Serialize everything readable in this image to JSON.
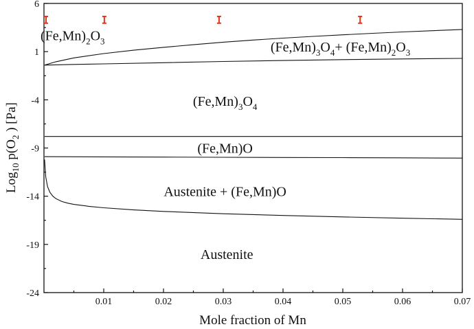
{
  "chart_data": {
    "type": "line",
    "title": "",
    "xlabel": "Mole fraction of Mn",
    "ylabel": {
      "base": "Log",
      "base_sub": "10",
      "mid": " p(O",
      "mid_sub": "2",
      "end": " ) [Pa]"
    },
    "xlim": [
      0,
      0.07
    ],
    "ylim": [
      -24,
      6
    ],
    "x_ticks": [
      0.01,
      0.02,
      0.03,
      0.04,
      0.05,
      0.06,
      0.07
    ],
    "x_tick_labels": [
      "0.01",
      "0.02",
      "0.03",
      "0.04",
      "0.05",
      "0.06",
      "0.07"
    ],
    "y_ticks": [
      6,
      1,
      -4,
      -9,
      -14,
      -19,
      -24
    ],
    "y_tick_labels": [
      "6",
      "1",
      "-4",
      "-9",
      "-14",
      "-19",
      "-24"
    ],
    "grid": false,
    "boundaries": [
      {
        "id": "b-m2o3-upper",
        "x": [
          0.0001,
          0.002,
          0.005,
          0.01,
          0.015,
          0.02,
          0.025,
          0.03,
          0.035,
          0.04,
          0.045,
          0.05,
          0.055,
          0.06,
          0.065,
          0.07
        ],
        "y": [
          -0.4,
          -0.05,
          0.35,
          0.8,
          1.15,
          1.45,
          1.72,
          1.98,
          2.2,
          2.4,
          2.58,
          2.74,
          2.9,
          3.04,
          3.17,
          3.3
        ]
      },
      {
        "id": "b-m3o4-upper",
        "x": [
          0.0001,
          0.005,
          0.01,
          0.02,
          0.03,
          0.04,
          0.05,
          0.06,
          0.07
        ],
        "y": [
          -0.4,
          -0.33,
          -0.27,
          -0.15,
          -0.02,
          0.08,
          0.17,
          0.24,
          0.3
        ]
      },
      {
        "id": "b-m3o4-mo",
        "x": [
          0.0001,
          0.07
        ],
        "y": [
          -7.8,
          -7.8
        ]
      },
      {
        "id": "b-mo-austenite",
        "x": [
          0.0001,
          0.01,
          0.02,
          0.03,
          0.04,
          0.05,
          0.06,
          0.07
        ],
        "y": [
          -9.9,
          -9.92,
          -9.94,
          -9.96,
          -9.98,
          -10.0,
          -10.02,
          -10.05
        ]
      },
      {
        "id": "b-austenite-lower",
        "x": [
          0.0001,
          0.0003,
          0.0006,
          0.001,
          0.0015,
          0.002,
          0.003,
          0.004,
          0.005,
          0.0075,
          0.01,
          0.015,
          0.02,
          0.03,
          0.04,
          0.05,
          0.06,
          0.07
        ],
        "y": [
          -10.2,
          -12.0,
          -13.0,
          -13.6,
          -14.0,
          -14.25,
          -14.55,
          -14.72,
          -14.85,
          -15.05,
          -15.2,
          -15.42,
          -15.58,
          -15.82,
          -16.0,
          -16.15,
          -16.28,
          -16.4
        ]
      }
    ],
    "error_bars": [
      {
        "x": 0.0,
        "y": 4.3,
        "yerr": 0.35
      },
      {
        "x": 0.0101,
        "y": 4.3,
        "yerr": 0.35
      },
      {
        "x": 0.0293,
        "y": 4.3,
        "yerr": 0.35
      },
      {
        "x": 0.0529,
        "y": 4.3,
        "yerr": 0.35
      }
    ],
    "regions": [
      {
        "id": "region-m2o3",
        "parts": [
          [
            "(Fe,Mn)",
            ""
          ],
          [
            "2",
            "sub"
          ],
          [
            "O",
            ""
          ],
          [
            "3",
            "sub"
          ]
        ],
        "x": 0.0048,
        "y": 2.2,
        "anchor": "middle"
      },
      {
        "id": "region-m3o4-m2o3",
        "parts": [
          [
            "(Fe,Mn)",
            ""
          ],
          [
            "3",
            "sub"
          ],
          [
            "O",
            ""
          ],
          [
            "4",
            "sub"
          ],
          [
            "+ (Fe,Mn)",
            ""
          ],
          [
            "2",
            "sub"
          ],
          [
            "O",
            ""
          ],
          [
            "3",
            "sub"
          ]
        ],
        "x": 0.0496,
        "y": 1.0,
        "anchor": "middle"
      },
      {
        "id": "region-m3o4",
        "parts": [
          [
            "(Fe,Mn)",
            ""
          ],
          [
            "3",
            "sub"
          ],
          [
            "O",
            ""
          ],
          [
            "4",
            "sub"
          ]
        ],
        "x": 0.0303,
        "y": -4.6,
        "anchor": "middle"
      },
      {
        "id": "region-mo",
        "parts": [
          [
            "(Fe,Mn)O",
            ""
          ]
        ],
        "x": 0.0303,
        "y": -9.5,
        "anchor": "middle"
      },
      {
        "id": "region-austenite-mo",
        "parts": [
          [
            "Austenite + (Fe,Mn)O",
            ""
          ]
        ],
        "x": 0.0303,
        "y": -14.0,
        "anchor": "middle"
      },
      {
        "id": "region-austenite",
        "parts": [
          [
            "Austenite",
            ""
          ]
        ],
        "x": 0.0306,
        "y": -20.5,
        "anchor": "middle"
      }
    ]
  }
}
